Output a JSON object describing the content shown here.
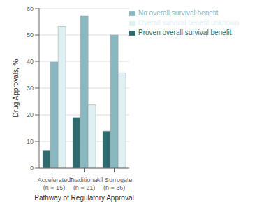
{
  "chart_data": {
    "type": "bar",
    "categories": [
      "Accelerated (n = 15)",
      "Traditional (n = 21)",
      "All Surrogate (n = 36)"
    ],
    "series": [
      {
        "name": "Proven overall survival benefit",
        "color": "#2e6b6e",
        "values": [
          6.7,
          19.0,
          13.9
        ]
      },
      {
        "name": "No overall survival benefit",
        "color": "#8ab8c0",
        "values": [
          40.0,
          57.1,
          50.0
        ]
      },
      {
        "name": "Overall survival benefit unknown",
        "color": "#dff0f3",
        "values": [
          53.3,
          23.8,
          35.7
        ]
      }
    ],
    "xlabel": "Pathway of Regulatory Approval",
    "ylabel": "Drug Approvals, %",
    "ylim": [
      0,
      60
    ],
    "yticks": [
      0,
      10,
      20,
      30,
      40,
      50,
      60
    ],
    "grid": true,
    "legend": "upper right"
  }
}
